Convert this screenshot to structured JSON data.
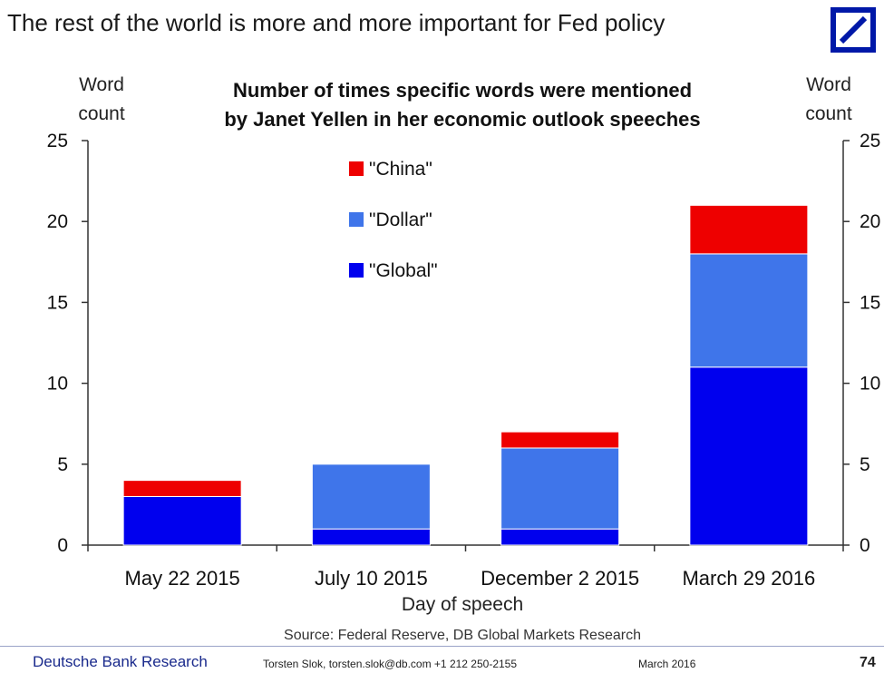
{
  "slide": {
    "title": "The rest of the world is more and more important for Fed policy",
    "source": "Source: Federal Reserve, DB Global Markets Research",
    "footer": {
      "brand": "Deutsche Bank Research",
      "contact": "Torsten Slok, torsten.slok@db.com +1 212 250-2155",
      "date": "March 2016",
      "page": "74"
    }
  },
  "chart_data": {
    "type": "bar",
    "stacked": true,
    "title": "Number of times specific words were mentioned by Janet Yellen in her economic outlook speeches",
    "title_lines": [
      "Number of times specific words were mentioned",
      "by Janet Yellen in her economic outlook speeches"
    ],
    "xlabel": "Day of speech",
    "ylabel_left": [
      "Word",
      "count"
    ],
    "ylabel_right": [
      "Word",
      "count"
    ],
    "ylim": [
      0,
      25
    ],
    "yticks": [
      0,
      5,
      10,
      15,
      20,
      25
    ],
    "categories": [
      "May 22 2015",
      "July 10 2015",
      "December 2 2015",
      "March 29 2016"
    ],
    "series": [
      {
        "name": "\"Global\"",
        "color": "#0000ee",
        "values": [
          3,
          1,
          1,
          11
        ]
      },
      {
        "name": "\"Dollar\"",
        "color": "#3f75ea",
        "values": [
          0,
          4,
          5,
          7
        ]
      },
      {
        "name": "\"China\"",
        "color": "#ee0000",
        "values": [
          1,
          0,
          1,
          3
        ]
      }
    ],
    "legend": {
      "placement": "top-left",
      "order": [
        "\"China\"",
        "\"Dollar\"",
        "\"Global\""
      ]
    },
    "grid": false
  }
}
